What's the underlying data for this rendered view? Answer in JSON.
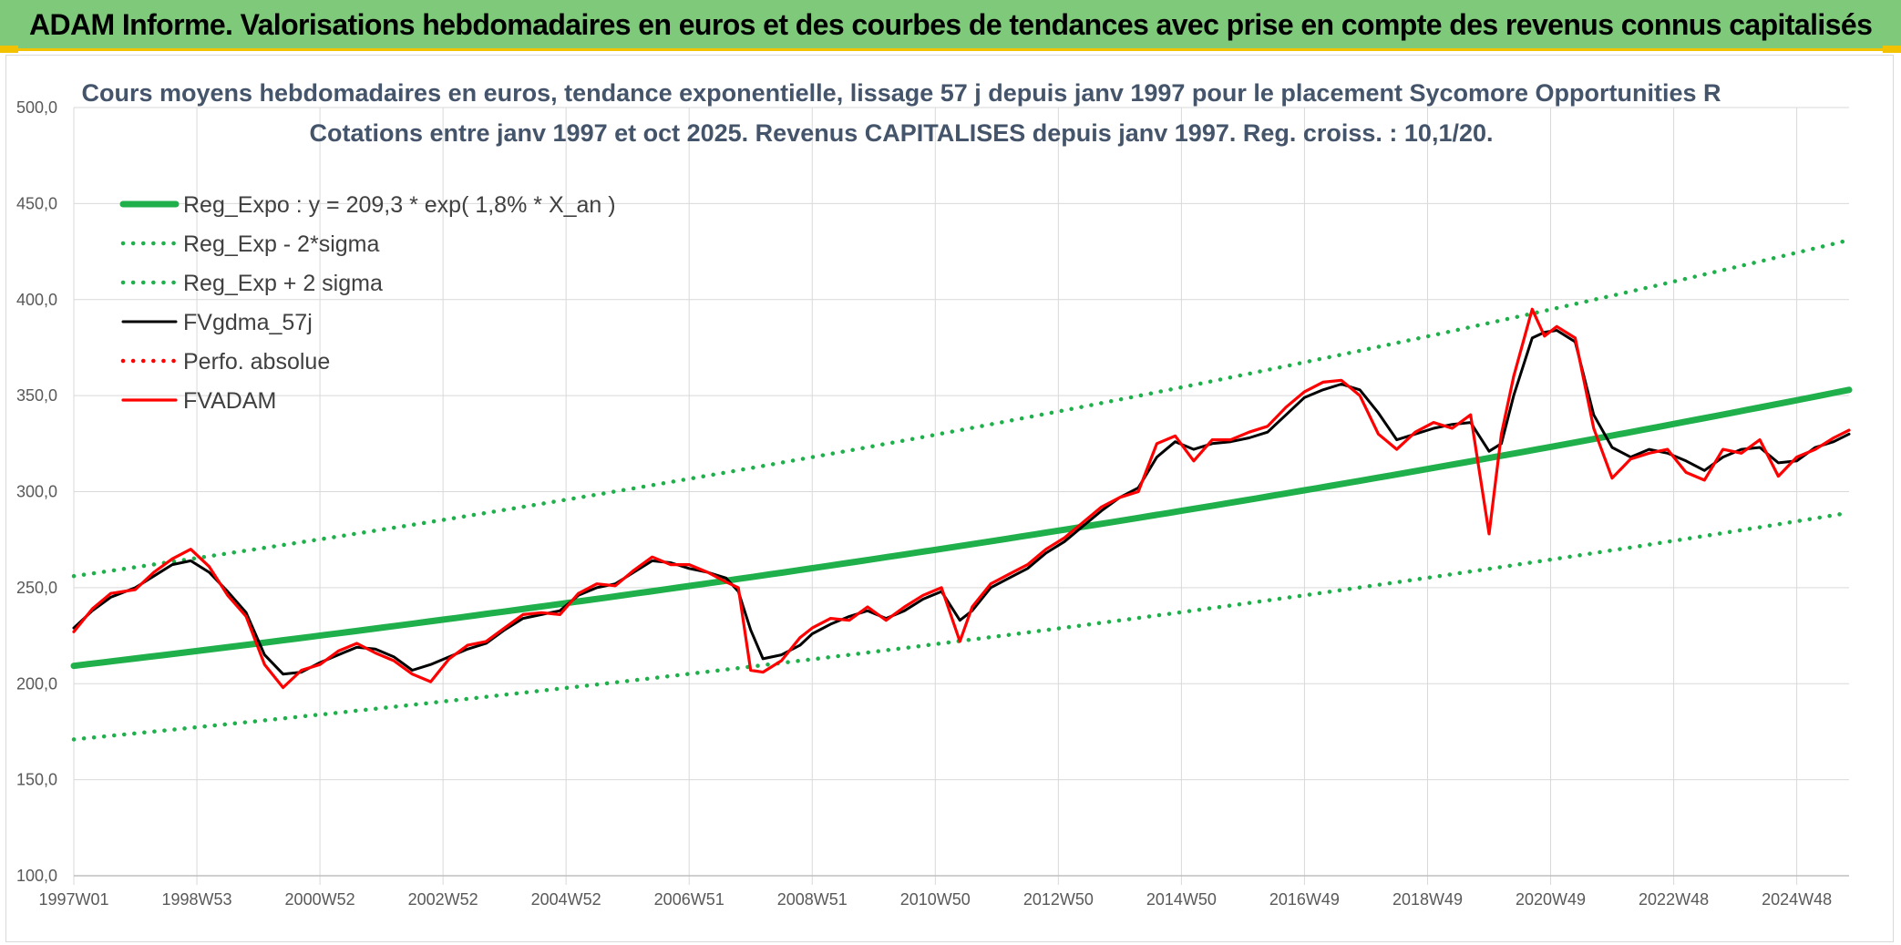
{
  "banner": {
    "title": "ADAM Informe. Valorisations hebdomadaires en euros et des courbes de tendances avec prise en compte des revenus connus capitalisés"
  },
  "colors": {
    "banner_bg": "#7fc97b",
    "accent_yellow": "#f2c200",
    "reg_green": "#1fb04c",
    "fund_red": "#ff0000",
    "smooth_black": "#000000",
    "title_gray": "#44546a"
  },
  "chart_data": {
    "type": "line",
    "title": "Cours moyens hebdomadaires en euros, tendance exponentielle, lissage 57 j depuis janv 1997 pour le placement Sycomore Opportunities R",
    "subtitle": "Cotations entre janv 1997 et oct 2025. Revenus CAPITALISES depuis janv 1997. Reg. croiss. : 10,1/20.",
    "xlabel": "",
    "ylabel": "",
    "ylim": [
      100,
      500
    ],
    "xlim": [
      1997.0,
      2025.85
    ],
    "y_ticks": [
      "100,0",
      "150,0",
      "200,0",
      "250,0",
      "300,0",
      "350,0",
      "400,0",
      "450,0",
      "500,0"
    ],
    "x_tick_labels": [
      "1997W01",
      "1998W53",
      "2000W52",
      "2002W52",
      "2004W52",
      "2006W51",
      "2008W51",
      "2010W50",
      "2012W50",
      "2014W50",
      "2016W49",
      "2018W49",
      "2020W49",
      "2022W48",
      "2024W48"
    ],
    "grid": true,
    "legend_position": "top-left",
    "series": [
      {
        "name": "Reg_Expo : y = 209,3 * exp( 1,8% *  X_an )",
        "style": "solid-thick",
        "color": "#1fb04c",
        "x": [
          1997.0,
          2025.85
        ],
        "values": [
          209.3,
          353.0
        ]
      },
      {
        "name": "Reg_Exp - 2*sigma",
        "style": "dotted",
        "color": "#1fb04c",
        "x": [
          1997.0,
          2025.85
        ],
        "values": [
          171.0,
          289.0
        ]
      },
      {
        "name": "Reg_Exp + 2 sigma",
        "style": "dotted",
        "color": "#1fb04c",
        "x": [
          1997.0,
          2025.85
        ],
        "values": [
          256.0,
          431.0
        ]
      },
      {
        "name": "FVgdma_57j",
        "style": "solid",
        "color": "#000000",
        "x": [
          1997.0,
          1997.3,
          1997.6,
          1998.0,
          1998.3,
          1998.6,
          1998.9,
          1999.2,
          1999.5,
          1999.8,
          2000.1,
          2000.4,
          2000.7,
          2001.0,
          2001.3,
          2001.6,
          2001.9,
          2002.2,
          2002.5,
          2002.8,
          2003.1,
          2003.4,
          2003.7,
          2004.0,
          2004.3,
          2004.6,
          2004.9,
          2005.2,
          2005.5,
          2005.8,
          2006.1,
          2006.4,
          2006.7,
          2007.0,
          2007.3,
          2007.6,
          2007.8,
          2008.0,
          2008.2,
          2008.5,
          2008.8,
          2009.0,
          2009.3,
          2009.6,
          2009.9,
          2010.2,
          2010.5,
          2010.8,
          2011.1,
          2011.4,
          2011.6,
          2011.9,
          2012.2,
          2012.5,
          2012.8,
          2013.1,
          2013.4,
          2013.7,
          2014.0,
          2014.3,
          2014.6,
          2014.9,
          2015.2,
          2015.5,
          2015.8,
          2016.1,
          2016.4,
          2016.7,
          2017.0,
          2017.3,
          2017.6,
          2017.9,
          2018.2,
          2018.5,
          2018.8,
          2019.1,
          2019.4,
          2019.7,
          2020.0,
          2020.2,
          2020.4,
          2020.7,
          2020.9,
          2021.1,
          2021.4,
          2021.7,
          2022.0,
          2022.3,
          2022.6,
          2022.9,
          2023.2,
          2023.5,
          2023.8,
          2024.1,
          2024.4,
          2024.7,
          2025.0,
          2025.3,
          2025.6,
          2025.85
        ],
        "values": [
          229,
          238,
          245,
          250,
          256,
          262,
          264,
          258,
          248,
          237,
          215,
          205,
          206,
          211,
          215,
          219,
          218,
          214,
          207,
          210,
          214,
          218,
          221,
          228,
          234,
          236,
          238,
          246,
          250,
          252,
          258,
          264,
          263,
          260,
          258,
          255,
          248,
          228,
          213,
          215,
          220,
          226,
          231,
          235,
          238,
          234,
          238,
          244,
          248,
          233,
          238,
          250,
          255,
          260,
          268,
          274,
          282,
          290,
          297,
          302,
          318,
          326,
          322,
          325,
          326,
          328,
          331,
          340,
          349,
          353,
          356,
          353,
          341,
          327,
          330,
          333,
          335,
          336,
          321,
          325,
          350,
          380,
          383,
          384,
          378,
          340,
          323,
          318,
          322,
          320,
          316,
          311,
          318,
          322,
          323,
          315,
          316,
          323,
          326,
          330
        ]
      },
      {
        "name": "Perfo. absolue",
        "style": "dotted",
        "color": "#ff0000",
        "x": [],
        "values": []
      },
      {
        "name": "FVADAM",
        "style": "solid",
        "color": "#ff0000",
        "x": [
          1997.0,
          1997.3,
          1997.6,
          1998.0,
          1998.3,
          1998.6,
          1998.9,
          1999.2,
          1999.5,
          1999.8,
          2000.1,
          2000.4,
          2000.7,
          2001.0,
          2001.3,
          2001.6,
          2001.9,
          2002.2,
          2002.5,
          2002.8,
          2003.1,
          2003.4,
          2003.7,
          2004.0,
          2004.3,
          2004.6,
          2004.9,
          2005.2,
          2005.5,
          2005.8,
          2006.1,
          2006.4,
          2006.7,
          2007.0,
          2007.3,
          2007.6,
          2007.8,
          2008.0,
          2008.2,
          2008.5,
          2008.8,
          2009.0,
          2009.3,
          2009.6,
          2009.9,
          2010.2,
          2010.5,
          2010.8,
          2011.1,
          2011.4,
          2011.6,
          2011.9,
          2012.2,
          2012.5,
          2012.8,
          2013.1,
          2013.4,
          2013.7,
          2014.0,
          2014.3,
          2014.6,
          2014.9,
          2015.2,
          2015.5,
          2015.8,
          2016.1,
          2016.4,
          2016.7,
          2017.0,
          2017.3,
          2017.6,
          2017.9,
          2018.2,
          2018.5,
          2018.8,
          2019.1,
          2019.4,
          2019.7,
          2020.0,
          2020.2,
          2020.4,
          2020.7,
          2020.9,
          2021.1,
          2021.4,
          2021.7,
          2022.0,
          2022.3,
          2022.6,
          2022.9,
          2023.2,
          2023.5,
          2023.8,
          2024.1,
          2024.4,
          2024.7,
          2025.0,
          2025.3,
          2025.6,
          2025.85
        ],
        "values": [
          227,
          239,
          247,
          249,
          258,
          265,
          270,
          261,
          246,
          235,
          210,
          198,
          207,
          210,
          217,
          221,
          216,
          212,
          205,
          201,
          213,
          220,
          222,
          229,
          236,
          237,
          236,
          247,
          252,
          251,
          259,
          266,
          262,
          262,
          258,
          253,
          250,
          207,
          206,
          212,
          224,
          229,
          234,
          233,
          240,
          233,
          240,
          246,
          250,
          222,
          240,
          252,
          257,
          262,
          270,
          276,
          284,
          292,
          297,
          300,
          325,
          329,
          316,
          327,
          327,
          331,
          334,
          344,
          352,
          357,
          358,
          350,
          330,
          322,
          331,
          336,
          333,
          340,
          278,
          330,
          360,
          395,
          381,
          386,
          380,
          333,
          307,
          317,
          320,
          322,
          310,
          306,
          322,
          320,
          327,
          308,
          318,
          322,
          328,
          332
        ]
      }
    ]
  }
}
